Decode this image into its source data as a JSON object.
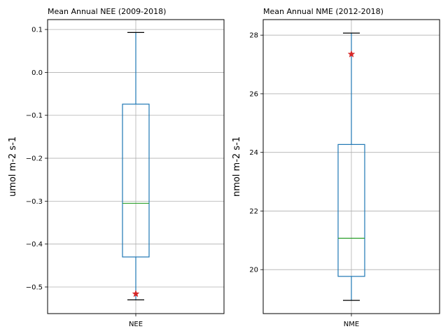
{
  "chart_data": [
    {
      "type": "box",
      "title": "Mean Annual NEE (2009-2018)",
      "xlabel": "",
      "ylabel": "umol m-2 s-1",
      "categories": [
        "NEE"
      ],
      "ylim": [
        -0.562,
        0.123
      ],
      "yticks": [
        0.1,
        0.0,
        -0.1,
        -0.2,
        -0.3,
        -0.4,
        -0.5
      ],
      "ytick_labels": [
        "0.1",
        "0.0",
        "−0.1",
        "−0.2",
        "−0.3",
        "−0.4",
        "−0.5"
      ],
      "grid": true,
      "box": {
        "whisker_low": -0.53,
        "q1": -0.43,
        "median": -0.305,
        "q3": -0.074,
        "whisker_high": 0.093
      },
      "marker": {
        "value": -0.516,
        "symbol": "star"
      },
      "colors": {
        "box": "#1f77b4",
        "median": "#2ca02c",
        "marker": "#d62728",
        "whisker_cap": "#000000",
        "grid": "#b0b0b0"
      }
    },
    {
      "type": "box",
      "title": "Mean Annual NME (2012-2018)",
      "xlabel": "",
      "ylabel": "nmol m-2 s-1",
      "categories": [
        "NME"
      ],
      "ylim": [
        18.5,
        28.53
      ],
      "yticks": [
        28,
        26,
        24,
        22,
        20
      ],
      "ytick_labels": [
        "28",
        "26",
        "24",
        "22",
        "20"
      ],
      "grid": true,
      "box": {
        "whisker_low": 18.95,
        "q1": 19.77,
        "median": 21.07,
        "q3": 24.27,
        "whisker_high": 28.07
      },
      "marker": {
        "value": 27.35,
        "symbol": "star"
      },
      "colors": {
        "box": "#1f77b4",
        "median": "#2ca02c",
        "marker": "#d62728",
        "whisker_cap": "#000000",
        "grid": "#b0b0b0"
      }
    }
  ]
}
